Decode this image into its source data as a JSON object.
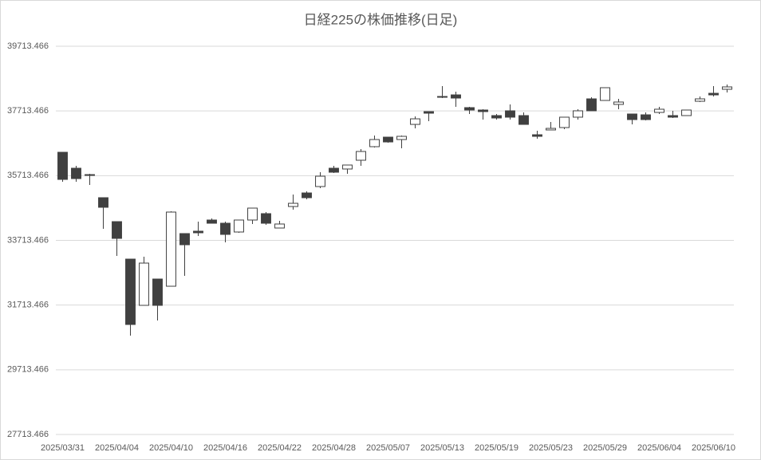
{
  "chart_data": {
    "type": "candlestick",
    "title": "日経225の株価推移(日足)",
    "categories": [
      "2025/03/31",
      null,
      null,
      null,
      "2025/04/04",
      null,
      null,
      null,
      "2025/04/10",
      null,
      null,
      null,
      "2025/04/16",
      null,
      null,
      null,
      "2025/04/22",
      null,
      null,
      null,
      "2025/04/28",
      null,
      null,
      null,
      "2025/05/07",
      null,
      null,
      null,
      "2025/05/13",
      null,
      null,
      null,
      "2025/05/19",
      null,
      null,
      null,
      "2025/05/23",
      null,
      null,
      null,
      "2025/05/29",
      null,
      null,
      null,
      "2025/06/04",
      null,
      null,
      null,
      "2025/06/10",
      null
    ],
    "open": [
      36436,
      35943,
      35746,
      35032,
      34292,
      33134,
      31705,
      32518,
      32296,
      33923,
      33997,
      34342,
      34243,
      33972,
      34342,
      34539,
      34095,
      34760,
      35179,
      35377,
      35943,
      35919,
      36190,
      36609,
      36904,
      36830,
      37298,
      37693,
      38161,
      38210,
      37816,
      37742,
      37570,
      37718,
      37570,
      36978,
      37126,
      37200,
      37521,
      38087,
      38038,
      37915,
      37619,
      37594,
      37668,
      37570,
      37570,
      38013,
      38259,
      38383
    ],
    "high": [
      36436,
      36017,
      35771,
      35032,
      34292,
      33134,
      33208,
      32518,
      34613,
      33923,
      34292,
      34391,
      34292,
      34342,
      34711,
      34588,
      34317,
      35130,
      35229,
      35820,
      36017,
      36042,
      36535,
      36953,
      36904,
      36953,
      37545,
      37693,
      38481,
      38309,
      37841,
      37767,
      37620,
      37915,
      37668,
      37101,
      37372,
      37521,
      37767,
      38136,
      38432,
      38087,
      37619,
      37668,
      37841,
      37718,
      37742,
      38161,
      38481,
      38530
    ],
    "low": [
      35524,
      35524,
      35426,
      34071,
      33233,
      30769,
      31705,
      31237,
      32296,
      32617,
      33849,
      34243,
      33652,
      33948,
      34219,
      34194,
      34095,
      34662,
      34983,
      35327,
      35795,
      35771,
      36017,
      36584,
      36732,
      36559,
      37175,
      37397,
      38112,
      37841,
      37620,
      37447,
      37447,
      37447,
      37298,
      36855,
      37126,
      37151,
      37447,
      37718,
      38038,
      37767,
      37298,
      37422,
      37620,
      37496,
      37570,
      37989,
      38161,
      38284
    ],
    "close": [
      35598,
      35623,
      35721,
      34736,
      33775,
      31114,
      33011,
      31705,
      34588,
      33578,
      33948,
      34243,
      33898,
      34342,
      34711,
      34243,
      34219,
      34859,
      35032,
      35697,
      35820,
      36042,
      36461,
      36830,
      36756,
      36929,
      37470,
      37644,
      38136,
      38112,
      37742,
      37693,
      37496,
      37521,
      37298,
      36929,
      37175,
      37521,
      37718,
      37718,
      38432,
      37989,
      37447,
      37447,
      37767,
      37521,
      37742,
      38087,
      38210,
      38457
    ],
    "up_color": "#ffffff",
    "down_color": "#404040",
    "outline_color": "#404040",
    "ylim": [
      27713.466,
      39713.466
    ],
    "yticks": [
      27713.466,
      29713.466,
      31713.466,
      33713.466,
      35713.466,
      37713.466,
      39713.466
    ],
    "grid": true
  }
}
